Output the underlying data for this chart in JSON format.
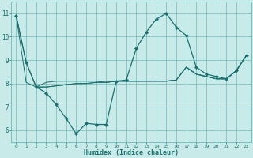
{
  "xlabel": "Humidex (Indice chaleur)",
  "xlim": [
    -0.5,
    23.5
  ],
  "ylim": [
    5.5,
    11.5
  ],
  "yticks": [
    6,
    7,
    8,
    9,
    10,
    11
  ],
  "xticks": [
    0,
    1,
    2,
    3,
    4,
    5,
    6,
    7,
    8,
    9,
    10,
    11,
    12,
    13,
    14,
    15,
    16,
    17,
    18,
    19,
    20,
    21,
    22,
    23
  ],
  "background_color": "#c8eae8",
  "grid_color": "#5aadad",
  "line_color": "#1a7070",
  "main_line": {
    "x": [
      0,
      1,
      2,
      3,
      4,
      5,
      6,
      7,
      8,
      9,
      10,
      11,
      12,
      13,
      14,
      15,
      16,
      17,
      18,
      19,
      20,
      21,
      22,
      23
    ],
    "y": [
      10.9,
      8.9,
      7.85,
      7.6,
      7.1,
      6.5,
      5.85,
      6.3,
      6.25,
      6.25,
      8.1,
      8.15,
      9.5,
      10.2,
      10.75,
      11.0,
      10.4,
      10.05,
      8.7,
      8.4,
      8.3,
      8.2,
      8.55,
      9.2
    ]
  },
  "aux_lines": [
    {
      "x": [
        0,
        1,
        2,
        3,
        4,
        5,
        6,
        7,
        8,
        9,
        10,
        11,
        12,
        13,
        14,
        15,
        16,
        17,
        18,
        19,
        20,
        21,
        22,
        23
      ],
      "y": [
        10.9,
        8.9,
        7.85,
        8.05,
        8.1,
        8.1,
        8.1,
        8.1,
        8.1,
        8.05,
        8.1,
        8.1,
        8.1,
        8.1,
        8.1,
        8.1,
        8.15,
        8.7,
        8.4,
        8.3,
        8.2,
        8.2,
        8.55,
        9.2
      ]
    },
    {
      "x": [
        0,
        1,
        2,
        3,
        4,
        5,
        6,
        7,
        8,
        9,
        10,
        11,
        12,
        13,
        14,
        15,
        16,
        17,
        18,
        19,
        20,
        21,
        22,
        23
      ],
      "y": [
        10.9,
        8.05,
        7.85,
        7.85,
        7.9,
        7.95,
        8.0,
        8.0,
        8.05,
        8.05,
        8.1,
        8.1,
        8.1,
        8.1,
        8.1,
        8.1,
        8.15,
        8.7,
        8.4,
        8.3,
        8.2,
        8.2,
        8.55,
        9.2
      ]
    },
    {
      "x": [
        2,
        3,
        4,
        5,
        6,
        7,
        8,
        9,
        10,
        11,
        12,
        13,
        14,
        15,
        16,
        17,
        18,
        19,
        20,
        21,
        22,
        23
      ],
      "y": [
        7.85,
        7.85,
        7.9,
        7.95,
        8.0,
        8.0,
        8.05,
        8.05,
        8.1,
        8.1,
        8.1,
        8.1,
        8.1,
        8.1,
        8.15,
        8.7,
        8.4,
        8.3,
        8.2,
        8.2,
        8.55,
        9.2
      ]
    }
  ]
}
